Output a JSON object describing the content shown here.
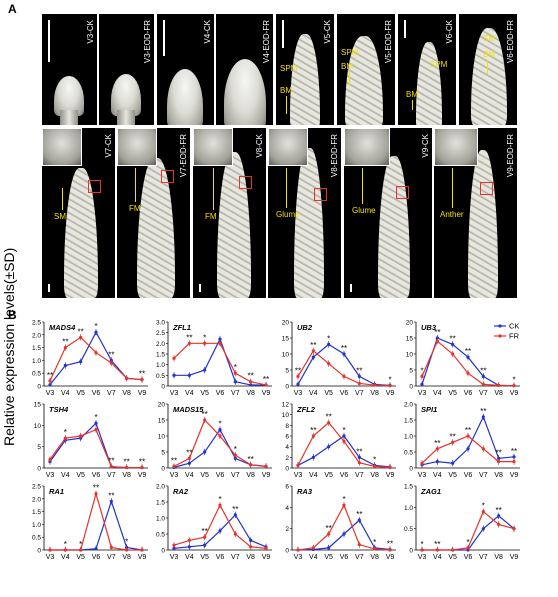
{
  "panel_a": {
    "letter": "A",
    "top_row": [
      {
        "ck": "V3-CK",
        "fr": "V3-EOD-FR"
      },
      {
        "ck": "V4-CK",
        "fr": "V4-EOD-FR"
      },
      {
        "ck": "V5-CK",
        "fr": "V5-EOD-FR"
      },
      {
        "ck": "V6-CK",
        "fr": "V6-EOD-FR"
      }
    ],
    "top_annotations": {
      "v5_ck": [
        "SPM",
        "BM"
      ],
      "v5_fr": [
        "SPM",
        "BM"
      ],
      "v6_ck": [
        "SPM",
        "BM"
      ],
      "v6_fr": [
        "SM",
        "BM"
      ]
    },
    "bottom_row": [
      {
        "ck": "V7-CK",
        "fr": "V7-EOD-FR",
        "ck_inset": "SM",
        "fr_inset": "FM"
      },
      {
        "ck": "V8-CK",
        "fr": "V8-EOD-FR",
        "ck_inset": "FM",
        "fr_inset": "Glume"
      },
      {
        "ck": "V9-CK",
        "fr": "V9-EOD-FR",
        "ck_inset": "Glume",
        "fr_inset": "Anther"
      }
    ]
  },
  "panel_b": {
    "letter": "B",
    "y_axis_label": "Relative expression levels(±SD)",
    "legend": [
      {
        "name": "CK",
        "color": "#2233cc"
      },
      {
        "name": "FR",
        "color": "#e8322a"
      }
    ]
  },
  "chart_data": [
    {
      "type": "line",
      "title": "MADS4",
      "x": [
        "V3",
        "V4",
        "V5",
        "V6",
        "V7",
        "V8",
        "V9"
      ],
      "ylim": [
        0,
        2.5
      ],
      "yticks": [
        "0",
        "0.5",
        "1.0",
        "1.5",
        "2.0",
        "2.5"
      ],
      "series": [
        {
          "name": "CK",
          "values": [
            0.05,
            0.8,
            0.95,
            2.1,
            1.0,
            0.3,
            0.25
          ]
        },
        {
          "name": "FR",
          "values": [
            0.2,
            1.5,
            1.9,
            1.3,
            0.9,
            0.3,
            0.25
          ]
        }
      ],
      "stars": [
        {
          "x": 0,
          "t": "**"
        },
        {
          "x": 1,
          "t": "**"
        },
        {
          "x": 2,
          "t": "**"
        },
        {
          "x": 3,
          "t": "*"
        },
        {
          "x": 4,
          "t": "**"
        },
        {
          "x": 6,
          "t": "**"
        }
      ]
    },
    {
      "type": "line",
      "title": "ZFL1",
      "x": [
        "V3",
        "V4",
        "V5",
        "V6",
        "V7",
        "V8",
        "V9"
      ],
      "ylim": [
        0,
        3.0
      ],
      "yticks": [
        "0",
        "0.5",
        "1.0",
        "1.5",
        "2.0",
        "2.5",
        "3.0"
      ],
      "series": [
        {
          "name": "CK",
          "values": [
            0.5,
            0.5,
            0.75,
            2.2,
            0.2,
            0.05,
            0.05
          ]
        },
        {
          "name": "FR",
          "values": [
            1.3,
            2.0,
            2.0,
            2.0,
            0.6,
            0.2,
            0.05
          ]
        }
      ],
      "stars": [
        {
          "x": 1,
          "t": "**"
        },
        {
          "x": 2,
          "t": "*"
        },
        {
          "x": 4,
          "t": "*"
        },
        {
          "x": 5,
          "t": "**"
        },
        {
          "x": 6,
          "t": "**"
        }
      ]
    },
    {
      "type": "line",
      "title": "UB2",
      "x": [
        "V3",
        "V4",
        "V5",
        "V6",
        "V7",
        "V8",
        "V9"
      ],
      "ylim": [
        0,
        20
      ],
      "yticks": [
        "0",
        "5",
        "10",
        "15",
        "20"
      ],
      "series": [
        {
          "name": "CK",
          "values": [
            0.5,
            9,
            13,
            10,
            3,
            0.5,
            0.2
          ]
        },
        {
          "name": "FR",
          "values": [
            3,
            11,
            7,
            3,
            0.8,
            0.3,
            0.1
          ]
        }
      ],
      "stars": [
        {
          "x": 0,
          "t": "**"
        },
        {
          "x": 1,
          "t": "**"
        },
        {
          "x": 2,
          "t": "*"
        },
        {
          "x": 3,
          "t": "**"
        },
        {
          "x": 4,
          "t": "**"
        },
        {
          "x": 6,
          "t": "*"
        }
      ]
    },
    {
      "type": "line",
      "title": "UB3",
      "x": [
        "V3",
        "V4",
        "V5",
        "V6",
        "V7",
        "V8",
        "V9"
      ],
      "ylim": [
        0,
        20
      ],
      "yticks": [
        "0",
        "5",
        "10",
        "15",
        "20"
      ],
      "series": [
        {
          "name": "CK",
          "values": [
            0.5,
            15,
            13,
            9,
            3,
            0.2,
            0.1
          ]
        },
        {
          "name": "FR",
          "values": [
            3,
            14,
            10,
            4,
            0.5,
            0.2,
            0.1
          ]
        }
      ],
      "stars": [
        {
          "x": 0,
          "t": "*"
        },
        {
          "x": 1,
          "t": "**"
        },
        {
          "x": 2,
          "t": "**"
        },
        {
          "x": 3,
          "t": "**"
        },
        {
          "x": 4,
          "t": "**"
        },
        {
          "x": 6,
          "t": "*"
        }
      ]
    },
    {
      "type": "line",
      "title": "TSH4",
      "x": [
        "V3",
        "V4",
        "V5",
        "V6",
        "V7",
        "V8",
        "V9"
      ],
      "ylim": [
        0,
        15
      ],
      "yticks": [
        "0",
        "5",
        "10",
        "15"
      ],
      "series": [
        {
          "name": "CK",
          "values": [
            1.5,
            6.5,
            7,
            10.5,
            0.3,
            0.1,
            0.1
          ]
        },
        {
          "name": "FR",
          "values": [
            2,
            7,
            7.5,
            9,
            0.3,
            0.1,
            0.1
          ]
        }
      ],
      "stars": [
        {
          "x": 1,
          "t": "*"
        },
        {
          "x": 3,
          "t": "*"
        },
        {
          "x": 4,
          "t": "**"
        },
        {
          "x": 5,
          "t": "**"
        },
        {
          "x": 6,
          "t": "**"
        }
      ]
    },
    {
      "type": "line",
      "title": "MADS15",
      "x": [
        "V3",
        "V4",
        "V5",
        "V6",
        "V7",
        "V8",
        "V9"
      ],
      "ylim": [
        0,
        20
      ],
      "yticks": [
        "0",
        "5",
        "10",
        "15",
        "20"
      ],
      "series": [
        {
          "name": "CK",
          "values": [
            0.2,
            1.5,
            5,
            12,
            3,
            1,
            0.5
          ]
        },
        {
          "name": "FR",
          "values": [
            0.5,
            3,
            15,
            10,
            4,
            1,
            0.5
          ]
        }
      ],
      "stars": [
        {
          "x": 0,
          "t": "**"
        },
        {
          "x": 1,
          "t": "**"
        },
        {
          "x": 2,
          "t": "**"
        },
        {
          "x": 3,
          "t": "*"
        },
        {
          "x": 4,
          "t": "*"
        },
        {
          "x": 5,
          "t": "**"
        }
      ]
    },
    {
      "type": "line",
      "title": "ZFL2",
      "x": [
        "V3",
        "V4",
        "V5",
        "V6",
        "V7",
        "V8",
        "V9"
      ],
      "ylim": [
        0,
        12
      ],
      "yticks": [
        "0",
        "2",
        "4",
        "6",
        "8",
        "10",
        "12"
      ],
      "series": [
        {
          "name": "CK",
          "values": [
            0.5,
            2,
            4,
            6,
            2,
            0.5,
            0.2
          ]
        },
        {
          "name": "FR",
          "values": [
            0.5,
            6,
            8.5,
            5,
            1,
            0.3,
            0.1
          ]
        }
      ],
      "stars": [
        {
          "x": 1,
          "t": "**"
        },
        {
          "x": 2,
          "t": "**"
        },
        {
          "x": 3,
          "t": "*"
        },
        {
          "x": 4,
          "t": "**"
        },
        {
          "x": 5,
          "t": "*"
        }
      ]
    },
    {
      "type": "line",
      "title": "SPI1",
      "x": [
        "V3",
        "V4",
        "V5",
        "V6",
        "V7",
        "V8",
        "V9"
      ],
      "ylim": [
        0,
        2.0
      ],
      "yticks": [
        "0",
        "0.5",
        "1.0",
        "1.5",
        "2.0"
      ],
      "series": [
        {
          "name": "CK",
          "values": [
            0.1,
            0.2,
            0.15,
            0.6,
            1.6,
            0.3,
            0.35
          ]
        },
        {
          "name": "FR",
          "values": [
            0.15,
            0.6,
            0.8,
            1.0,
            0.6,
            0.2,
            0.2
          ]
        }
      ],
      "stars": [
        {
          "x": 1,
          "t": "**"
        },
        {
          "x": 2,
          "t": "**"
        },
        {
          "x": 3,
          "t": "**"
        },
        {
          "x": 4,
          "t": "**"
        },
        {
          "x": 5,
          "t": "**"
        },
        {
          "x": 6,
          "t": "**"
        }
      ]
    },
    {
      "type": "line",
      "title": "RA1",
      "x": [
        "V3",
        "V4",
        "V5",
        "V6",
        "V7",
        "V8",
        "V9"
      ],
      "ylim": [
        0,
        2.5
      ],
      "yticks": [
        "0",
        "0.5",
        "1.0",
        "1.5",
        "2.0",
        "2.5"
      ],
      "series": [
        {
          "name": "CK",
          "values": [
            0,
            0,
            0,
            0.05,
            1.9,
            0.1,
            0
          ]
        },
        {
          "name": "FR",
          "values": [
            0,
            0,
            0,
            2.2,
            0.1,
            0,
            0
          ]
        }
      ],
      "stars": [
        {
          "x": 1,
          "t": "*"
        },
        {
          "x": 2,
          "t": "*"
        },
        {
          "x": 3,
          "t": "**"
        },
        {
          "x": 4,
          "t": "**"
        },
        {
          "x": 5,
          "t": "*"
        }
      ]
    },
    {
      "type": "line",
      "title": "RA2",
      "x": [
        "V3",
        "V4",
        "V5",
        "V6",
        "V7",
        "V8",
        "V9"
      ],
      "ylim": [
        0,
        2.0
      ],
      "yticks": [
        "0",
        "0.5",
        "1.0",
        "1.5",
        "2.0"
      ],
      "series": [
        {
          "name": "CK",
          "values": [
            0.05,
            0.1,
            0.15,
            0.6,
            1.1,
            0.3,
            0.1
          ]
        },
        {
          "name": "FR",
          "values": [
            0.15,
            0.3,
            0.4,
            1.4,
            0.5,
            0.1,
            0.05
          ]
        }
      ],
      "stars": [
        {
          "x": 2,
          "t": "**"
        },
        {
          "x": 3,
          "t": "*"
        },
        {
          "x": 4,
          "t": "**"
        }
      ]
    },
    {
      "type": "line",
      "title": "RA3",
      "x": [
        "V3",
        "V4",
        "V5",
        "V6",
        "V7",
        "V8",
        "V9"
      ],
      "ylim": [
        0,
        6
      ],
      "yticks": [
        "0",
        "2",
        "4",
        "6"
      ],
      "series": [
        {
          "name": "CK",
          "values": [
            0,
            0.05,
            0.2,
            1.5,
            2.8,
            0.2,
            0.05
          ]
        },
        {
          "name": "FR",
          "values": [
            0,
            0.2,
            1.5,
            4.2,
            0.5,
            0.1,
            0
          ]
        }
      ],
      "stars": [
        {
          "x": 2,
          "t": "**"
        },
        {
          "x": 3,
          "t": "*"
        },
        {
          "x": 4,
          "t": "**"
        },
        {
          "x": 5,
          "t": "*"
        },
        {
          "x": 6,
          "t": "**"
        }
      ]
    },
    {
      "type": "line",
      "title": "ZAG1",
      "x": [
        "V3",
        "V4",
        "V5",
        "V6",
        "V7",
        "V8",
        "V9"
      ],
      "ylim": [
        0,
        1.5
      ],
      "yticks": [
        "0",
        "0.5",
        "1.0",
        "1.5"
      ],
      "series": [
        {
          "name": "CK",
          "values": [
            0,
            0,
            0,
            0,
            0.5,
            0.8,
            0.5
          ]
        },
        {
          "name": "FR",
          "values": [
            0,
            0,
            0,
            0.05,
            0.9,
            0.6,
            0.5
          ]
        }
      ],
      "stars": [
        {
          "x": 0,
          "t": "*"
        },
        {
          "x": 1,
          "t": "**"
        },
        {
          "x": 3,
          "t": "*"
        },
        {
          "x": 4,
          "t": "*"
        },
        {
          "x": 5,
          "t": "**"
        }
      ]
    }
  ],
  "colors": {
    "ck": "#2233cc",
    "fr": "#e8322a",
    "annotation": "#f5e100"
  }
}
